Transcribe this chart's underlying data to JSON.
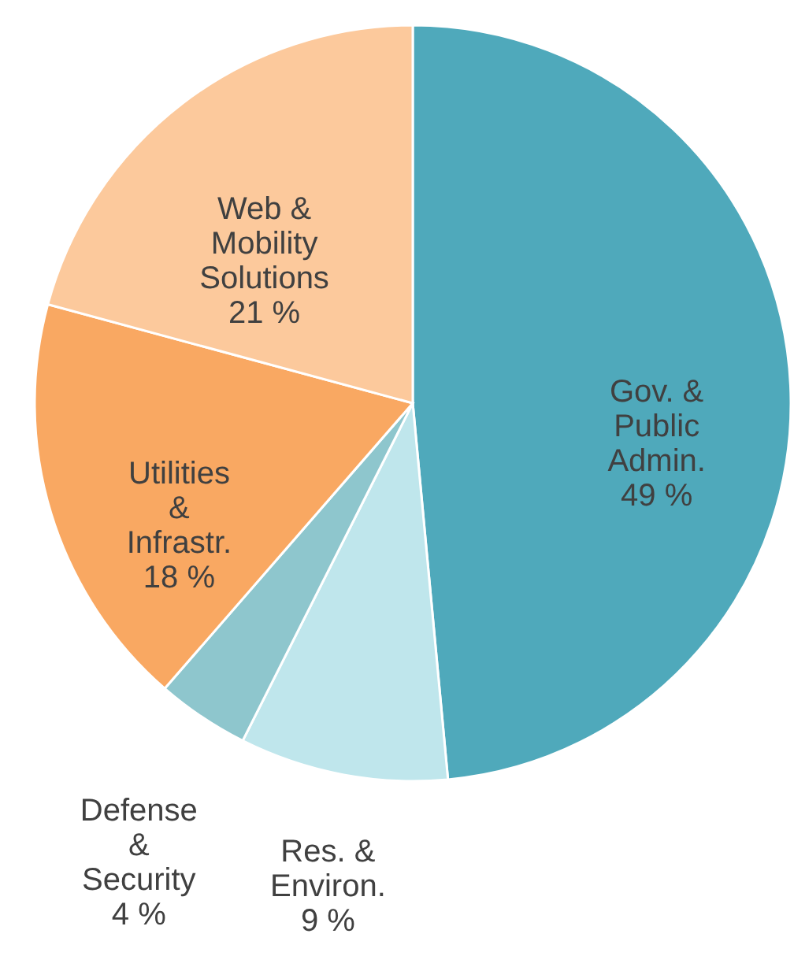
{
  "chart_data": {
    "type": "pie",
    "categories": [
      "Gov. &\nPublic\nAdmin.",
      "Res. &\nEnviron.",
      "Defense\n&\nSecurity",
      "Utilities\n&\nInfrastr.",
      "Web &\nMobility\nSolutions"
    ],
    "values": [
      49,
      9,
      4,
      18,
      21
    ],
    "value_labels": [
      "49 %",
      "9 %",
      "4 %",
      "18 %",
      "21 %"
    ],
    "colors": [
      "#4fa9bb",
      "#bfe6ec",
      "#8ec6cd",
      "#f9a862",
      "#fcc99c"
    ]
  }
}
